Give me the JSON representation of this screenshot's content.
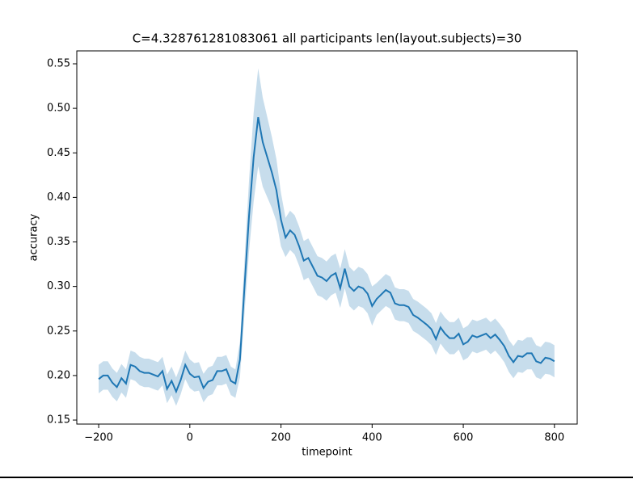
{
  "chart_data": {
    "type": "line",
    "title": "C=4.328761281083061 all participants len(layout.subjects)=30",
    "xlabel": "timepoint",
    "ylabel": "accuracy",
    "x": [
      -200,
      -190,
      -180,
      -170,
      -160,
      -150,
      -140,
      -130,
      -120,
      -110,
      -100,
      -90,
      -80,
      -70,
      -60,
      -50,
      -40,
      -30,
      -20,
      -10,
      0,
      10,
      20,
      30,
      40,
      50,
      60,
      70,
      80,
      90,
      100,
      110,
      120,
      130,
      140,
      150,
      160,
      170,
      180,
      190,
      200,
      210,
      220,
      230,
      240,
      250,
      260,
      270,
      280,
      290,
      300,
      310,
      320,
      330,
      340,
      350,
      360,
      370,
      380,
      390,
      400,
      410,
      420,
      430,
      440,
      450,
      460,
      470,
      480,
      490,
      500,
      510,
      520,
      530,
      540,
      550,
      560,
      570,
      580,
      590,
      600,
      610,
      620,
      630,
      640,
      650,
      660,
      670,
      680,
      690,
      700,
      710,
      720,
      730,
      740,
      750,
      760,
      770,
      780,
      790,
      800
    ],
    "series": [
      {
        "color": "#1f77b4",
        "band_color": "#1f77b4",
        "values": [
          0.196,
          0.2,
          0.2,
          0.192,
          0.187,
          0.197,
          0.191,
          0.212,
          0.21,
          0.205,
          0.203,
          0.203,
          0.201,
          0.199,
          0.205,
          0.185,
          0.194,
          0.182,
          0.195,
          0.212,
          0.202,
          0.198,
          0.199,
          0.186,
          0.193,
          0.195,
          0.205,
          0.205,
          0.207,
          0.194,
          0.191,
          0.218,
          0.3,
          0.38,
          0.445,
          0.49,
          0.462,
          0.445,
          0.428,
          0.408,
          0.375,
          0.355,
          0.363,
          0.358,
          0.345,
          0.329,
          0.332,
          0.322,
          0.312,
          0.31,
          0.306,
          0.312,
          0.315,
          0.298,
          0.32,
          0.3,
          0.295,
          0.3,
          0.298,
          0.292,
          0.278,
          0.286,
          0.291,
          0.296,
          0.293,
          0.281,
          0.279,
          0.279,
          0.277,
          0.268,
          0.265,
          0.261,
          0.257,
          0.252,
          0.241,
          0.254,
          0.247,
          0.242,
          0.242,
          0.247,
          0.235,
          0.238,
          0.245,
          0.243,
          0.245,
          0.247,
          0.242,
          0.246,
          0.24,
          0.233,
          0.222,
          0.215,
          0.222,
          0.221,
          0.225,
          0.225,
          0.216,
          0.214,
          0.22,
          0.219,
          0.216
        ],
        "lower": [
          0.18,
          0.184,
          0.184,
          0.176,
          0.171,
          0.181,
          0.175,
          0.196,
          0.194,
          0.189,
          0.187,
          0.187,
          0.185,
          0.183,
          0.189,
          0.169,
          0.178,
          0.166,
          0.179,
          0.196,
          0.186,
          0.182,
          0.183,
          0.17,
          0.177,
          0.179,
          0.189,
          0.189,
          0.191,
          0.178,
          0.175,
          0.198,
          0.27,
          0.34,
          0.395,
          0.435,
          0.412,
          0.4,
          0.388,
          0.373,
          0.345,
          0.333,
          0.341,
          0.336,
          0.323,
          0.307,
          0.31,
          0.3,
          0.29,
          0.288,
          0.284,
          0.29,
          0.293,
          0.276,
          0.298,
          0.278,
          0.273,
          0.278,
          0.276,
          0.27,
          0.256,
          0.268,
          0.273,
          0.278,
          0.275,
          0.263,
          0.261,
          0.261,
          0.259,
          0.25,
          0.247,
          0.243,
          0.239,
          0.234,
          0.223,
          0.236,
          0.229,
          0.224,
          0.224,
          0.229,
          0.217,
          0.22,
          0.227,
          0.225,
          0.227,
          0.229,
          0.224,
          0.228,
          0.222,
          0.215,
          0.204,
          0.197,
          0.204,
          0.203,
          0.207,
          0.207,
          0.198,
          0.196,
          0.202,
          0.201,
          0.198
        ],
        "upper": [
          0.212,
          0.216,
          0.216,
          0.208,
          0.203,
          0.213,
          0.207,
          0.228,
          0.226,
          0.221,
          0.219,
          0.219,
          0.217,
          0.215,
          0.221,
          0.201,
          0.21,
          0.198,
          0.211,
          0.228,
          0.218,
          0.214,
          0.215,
          0.202,
          0.209,
          0.211,
          0.221,
          0.221,
          0.223,
          0.21,
          0.207,
          0.238,
          0.33,
          0.42,
          0.495,
          0.545,
          0.512,
          0.49,
          0.468,
          0.443,
          0.405,
          0.377,
          0.385,
          0.38,
          0.367,
          0.351,
          0.354,
          0.344,
          0.334,
          0.332,
          0.328,
          0.334,
          0.337,
          0.32,
          0.342,
          0.322,
          0.317,
          0.322,
          0.32,
          0.314,
          0.3,
          0.304,
          0.309,
          0.314,
          0.311,
          0.299,
          0.297,
          0.297,
          0.295,
          0.286,
          0.283,
          0.279,
          0.275,
          0.27,
          0.259,
          0.272,
          0.265,
          0.26,
          0.26,
          0.265,
          0.253,
          0.256,
          0.263,
          0.261,
          0.263,
          0.265,
          0.26,
          0.264,
          0.258,
          0.251,
          0.24,
          0.233,
          0.24,
          0.239,
          0.243,
          0.243,
          0.234,
          0.232,
          0.238,
          0.237,
          0.234
        ]
      }
    ],
    "xlim": [
      -248,
      850
    ],
    "ylim": [
      0.1455,
      0.5645
    ],
    "xticks": [
      {
        "value": -200,
        "label": "−200"
      },
      0,
      200,
      400,
      600,
      800
    ],
    "yticks": [
      0.15,
      {
        "value": 0.2,
        "label": "0.20"
      },
      0.25,
      {
        "value": 0.3,
        "label": "0.30"
      },
      0.35,
      {
        "value": 0.4,
        "label": "0.40"
      },
      0.45,
      {
        "value": 0.5,
        "label": "0.50"
      },
      0.55
    ],
    "grid": false
  }
}
